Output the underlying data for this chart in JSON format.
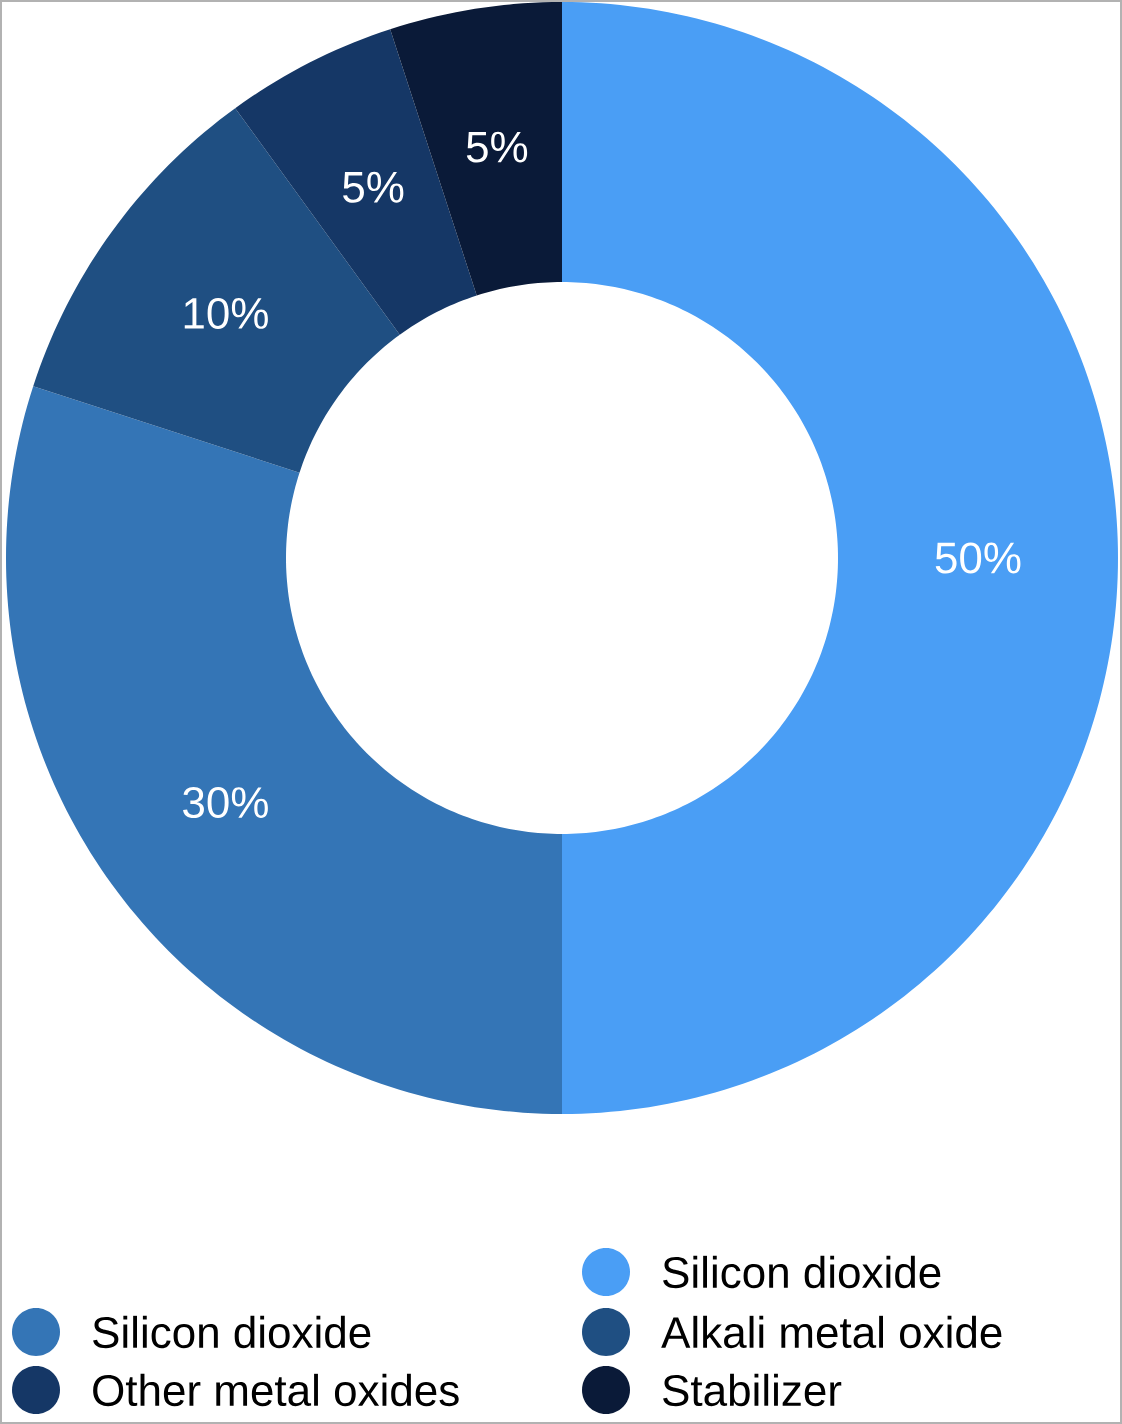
{
  "chart_data": {
    "type": "donut",
    "categories": [
      "Silicon dioxide",
      "Silicon dioxide",
      "Alkali metal oxide",
      "Other metal oxides",
      "Stabilizer"
    ],
    "values": [
      50,
      30,
      10,
      5,
      5
    ],
    "colors": [
      "#4a9ef5",
      "#3475b6",
      "#1f4f82",
      "#153766",
      "#0a1a38"
    ],
    "value_labels": [
      "50%",
      "30%",
      "10%",
      "5%",
      "5%"
    ],
    "legend": "bottom"
  }
}
